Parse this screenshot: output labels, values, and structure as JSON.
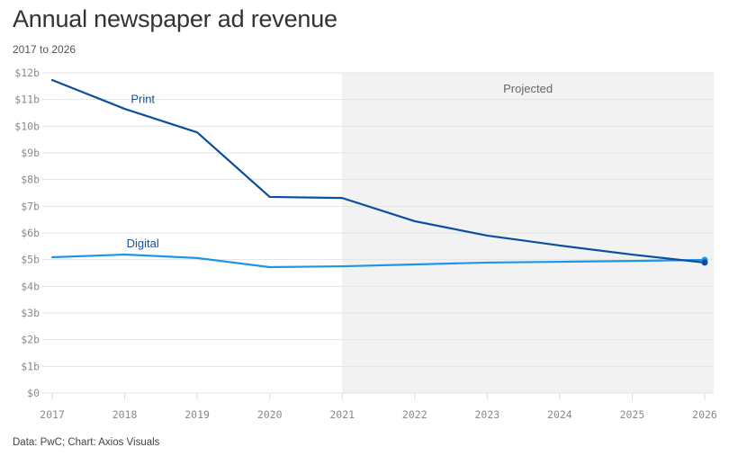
{
  "header": {
    "title": "Annual newspaper ad revenue",
    "subtitle": "2017 to 2026"
  },
  "footer": {
    "source": "Data: PwC; Chart: Axios Visuals"
  },
  "chart_data": {
    "type": "line",
    "title": "Annual newspaper ad revenue",
    "subtitle": "2017 to 2026",
    "xlabel": "",
    "ylabel": "",
    "x": [
      2017,
      2018,
      2019,
      2020,
      2021,
      2022,
      2023,
      2024,
      2025,
      2026
    ],
    "x_tick_labels": [
      "2017",
      "2018",
      "2019",
      "2020",
      "2021",
      "2022",
      "2023",
      "2024",
      "2025",
      "2026"
    ],
    "ylim": [
      0,
      12
    ],
    "y_ticks": [
      0,
      1,
      2,
      3,
      4,
      5,
      6,
      7,
      8,
      9,
      10,
      11,
      12
    ],
    "y_tick_labels": [
      "$0",
      "$1b",
      "$2b",
      "$3b",
      "$4b",
      "$5b",
      "$6b",
      "$7b",
      "$8b",
      "$9b",
      "$10b",
      "$11b",
      "$12b"
    ],
    "grid": true,
    "projected_region": {
      "from": 2021,
      "to": 2026,
      "label": "Projected",
      "color": "#f2f2f2"
    },
    "series": [
      {
        "name": "Print",
        "color": "#0a4f9e",
        "values": [
          11.73,
          10.65,
          9.77,
          7.35,
          7.31,
          6.44,
          5.9,
          5.53,
          5.19,
          4.89
        ],
        "label_at": 2018.25,
        "label_value": 11.0
      },
      {
        "name": "Digital",
        "color": "#1f95e8",
        "values": [
          5.09,
          5.19,
          5.06,
          4.72,
          4.75,
          4.82,
          4.89,
          4.92,
          4.95,
          4.99
        ],
        "label_at": 2018.25,
        "label_value": 5.6
      }
    ],
    "annotations": [
      "Print",
      "Digital",
      "Projected"
    ],
    "legend": "inline-labels",
    "source": "Data: PwC; Chart: Axios Visuals"
  }
}
